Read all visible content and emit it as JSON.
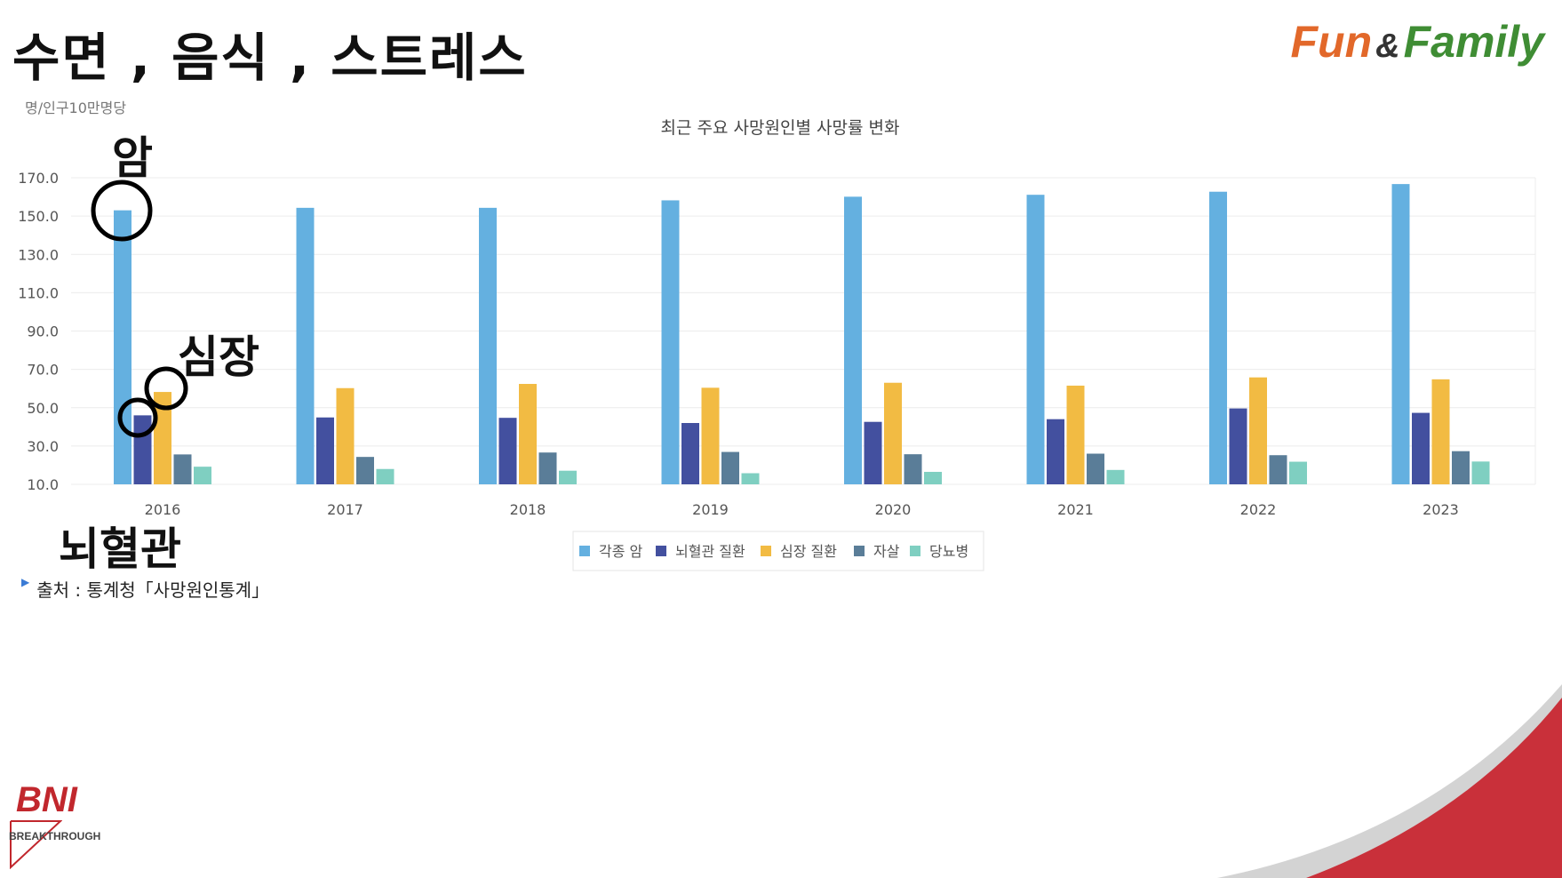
{
  "slide_title": "수면 , 음식 , 스트레스",
  "logo": {
    "part1": "Fun",
    "amp": "&",
    "part2": "Family"
  },
  "unit_label": "명/인구10만명당",
  "source": "출처 : 통계청「사망원인통계」",
  "annotations": {
    "cancer": "암",
    "heart": "심장",
    "cerebro": "뇌혈관"
  },
  "bni": {
    "name": "BNI",
    "chapter": "BREAKTHROUGH"
  },
  "colors": {
    "cancer": "#64b0e0",
    "cerebro": "#43509f",
    "heart": "#f2bb43",
    "suicide": "#5a7d98",
    "diabetes": "#7fcfc1"
  },
  "chart_data": {
    "type": "bar",
    "title": "최근 주요 사망원인별 사망률 변화",
    "categories": [
      "2016",
      "2017",
      "2018",
      "2019",
      "2020",
      "2021",
      "2022",
      "2023"
    ],
    "y_ticks": [
      "170.0",
      "150.0",
      "130.0",
      "110.0",
      "90.0",
      "70.0",
      "50.0",
      "30.0",
      "10.0"
    ],
    "ylim": [
      10,
      170
    ],
    "grid": true,
    "legend_position": "bottom-center",
    "series": [
      {
        "name": "각종 암",
        "color": "#64b0e0",
        "values": [
          153.0,
          154.3,
          154.3,
          158.2,
          160.1,
          161.1,
          162.7,
          166.7
        ]
      },
      {
        "name": "뇌혈관 질환",
        "color": "#43509f",
        "values": [
          46.0,
          44.9,
          44.7,
          42.0,
          42.6,
          44.0,
          49.6,
          47.3
        ]
      },
      {
        "name": "심장 질환",
        "color": "#f2bb43",
        "values": [
          58.2,
          60.2,
          62.4,
          60.4,
          63.0,
          61.5,
          65.8,
          64.8
        ]
      },
      {
        "name": "자살",
        "color": "#5a7d98",
        "values": [
          25.6,
          24.3,
          26.6,
          26.9,
          25.7,
          26.0,
          25.2,
          27.3
        ]
      },
      {
        "name": "당뇨병",
        "color": "#7fcfc1",
        "values": [
          19.2,
          18.0,
          17.1,
          15.8,
          16.5,
          17.5,
          21.8,
          21.9
        ]
      }
    ]
  }
}
